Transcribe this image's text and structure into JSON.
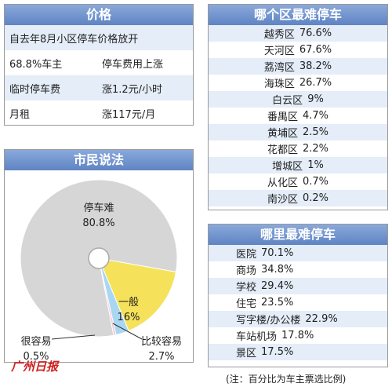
{
  "price_panel": {
    "title": "价格",
    "rows": [
      [
        "自去年8月小区停车价格放开"
      ],
      [
        "68.8%车主",
        "停车费用上涨"
      ],
      [
        "临时停车费",
        "涨1.2元/小时"
      ],
      [
        "月租",
        "涨117元/月"
      ]
    ]
  },
  "chart_data": {
    "type": "pie",
    "title": "市民说法",
    "categories": [
      "一般",
      "比较容易",
      "很容易",
      "停车难"
    ],
    "values": [
      16,
      2.7,
      0.5,
      80.8
    ],
    "value_labels": [
      "16%",
      "2.7%",
      "0.5%",
      "80.8%"
    ],
    "colors": [
      "#f6e25a",
      "#a9d7f2",
      "#f5c8d5",
      "#d6d6d6"
    ]
  },
  "district_panel": {
    "title": "哪个区最难停车",
    "rows": [
      [
        "越秀区",
        "76.6%"
      ],
      [
        "天河区",
        "67.6%"
      ],
      [
        "荔湾区",
        "38.2%"
      ],
      [
        "海珠区",
        "26.7%"
      ],
      [
        "白云区",
        "9%"
      ],
      [
        "番禺区",
        "4.7%"
      ],
      [
        "黄埔区",
        "2.5%"
      ],
      [
        "花都区",
        "2.2%"
      ],
      [
        "增城区",
        "1%"
      ],
      [
        "从化区",
        "0.7%"
      ],
      [
        "南沙区",
        "0.2%"
      ]
    ]
  },
  "place_panel": {
    "title": "哪里最难停车",
    "rows": [
      [
        "医院",
        "70.1%"
      ],
      [
        "商场",
        "34.8%"
      ],
      [
        "学校",
        "29.4%"
      ],
      [
        "住宅",
        "23.5%"
      ],
      [
        "写字楼/办公楼",
        "22.9%"
      ],
      [
        "车站机场",
        "17.8%"
      ],
      [
        "景区",
        "17.5%"
      ]
    ]
  },
  "note": "(注：百分比为车主票选比例)",
  "source": "广州日报"
}
